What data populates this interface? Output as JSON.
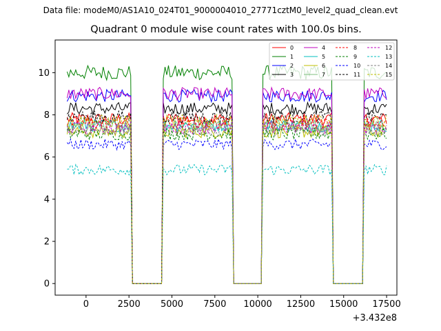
{
  "figure": {
    "suptitle": "Data file: modeM0/AS1A10_024T01_9000004010_27771cztM0_level2_quad_clean.evt"
  },
  "chart_data": {
    "type": "line",
    "title": "Quadrant 0 module wise count rates with 100.0s bins.",
    "xlabel": "",
    "ylabel": "",
    "x_offset_label": "+3.432e8",
    "xlim": [
      -1800,
      18100
    ],
    "ylim": [
      -0.55,
      11.55
    ],
    "x_ticks": [
      0,
      2500,
      5000,
      7500,
      10000,
      12500,
      15000,
      17500
    ],
    "x_tick_labels": [
      "0",
      "2500",
      "5000",
      "7500",
      "10000",
      "12500",
      "15000",
      "17500"
    ],
    "y_ticks": [
      0,
      2,
      4,
      6,
      8,
      10
    ],
    "y_tick_labels": [
      "0",
      "2",
      "4",
      "6",
      "8",
      "10"
    ],
    "bin_seconds": 100,
    "x_range": [
      -1100,
      17500
    ],
    "active_intervals": [
      [
        -1100,
        2600
      ],
      [
        4500,
        8500
      ],
      [
        10300,
        14300
      ],
      [
        16200,
        17500
      ]
    ],
    "legend_position": "top-right",
    "legend_columns": 4,
    "series": [
      {
        "name": "0",
        "color": "#ff0000",
        "dash": "solid",
        "level": 7.8,
        "jitter": 0.3
      },
      {
        "name": "1",
        "color": "#008000",
        "dash": "solid",
        "level": 10.0,
        "jitter": 0.35
      },
      {
        "name": "2",
        "color": "#0000ff",
        "dash": "solid",
        "level": 8.9,
        "jitter": 0.3
      },
      {
        "name": "3",
        "color": "#000000",
        "dash": "solid",
        "level": 8.3,
        "jitter": 0.3
      },
      {
        "name": "4",
        "color": "#bf00bf",
        "dash": "solid",
        "level": 9.0,
        "jitter": 0.3
      },
      {
        "name": "5",
        "color": "#00bfbf",
        "dash": "solid",
        "level": 7.5,
        "jitter": 0.3
      },
      {
        "name": "6",
        "color": "#bfbf00",
        "dash": "solid",
        "level": 7.2,
        "jitter": 0.3
      },
      {
        "name": "7",
        "color": "#7fbf7f",
        "dash": "solid",
        "level": 7.5,
        "jitter": 0.3
      },
      {
        "name": "8",
        "color": "#ff0000",
        "dash": "dashed",
        "level": 7.6,
        "jitter": 0.3
      },
      {
        "name": "9",
        "color": "#008000",
        "dash": "dashed",
        "level": 7.1,
        "jitter": 0.3
      },
      {
        "name": "10",
        "color": "#0000ff",
        "dash": "dashed",
        "level": 6.6,
        "jitter": 0.25
      },
      {
        "name": "11",
        "color": "#000000",
        "dash": "dashed",
        "level": 7.9,
        "jitter": 0.3
      },
      {
        "name": "12",
        "color": "#bf00bf",
        "dash": "dashed",
        "level": 7.4,
        "jitter": 0.3
      },
      {
        "name": "13",
        "color": "#00bfbf",
        "dash": "dashed",
        "level": 5.4,
        "jitter": 0.25
      },
      {
        "name": "14",
        "color": "#808080",
        "dash": "dashed",
        "level": 7.3,
        "jitter": 0.3
      },
      {
        "name": "15",
        "color": "#bfbf00",
        "dash": "dashed",
        "level": 7.7,
        "jitter": 0.3
      }
    ]
  }
}
